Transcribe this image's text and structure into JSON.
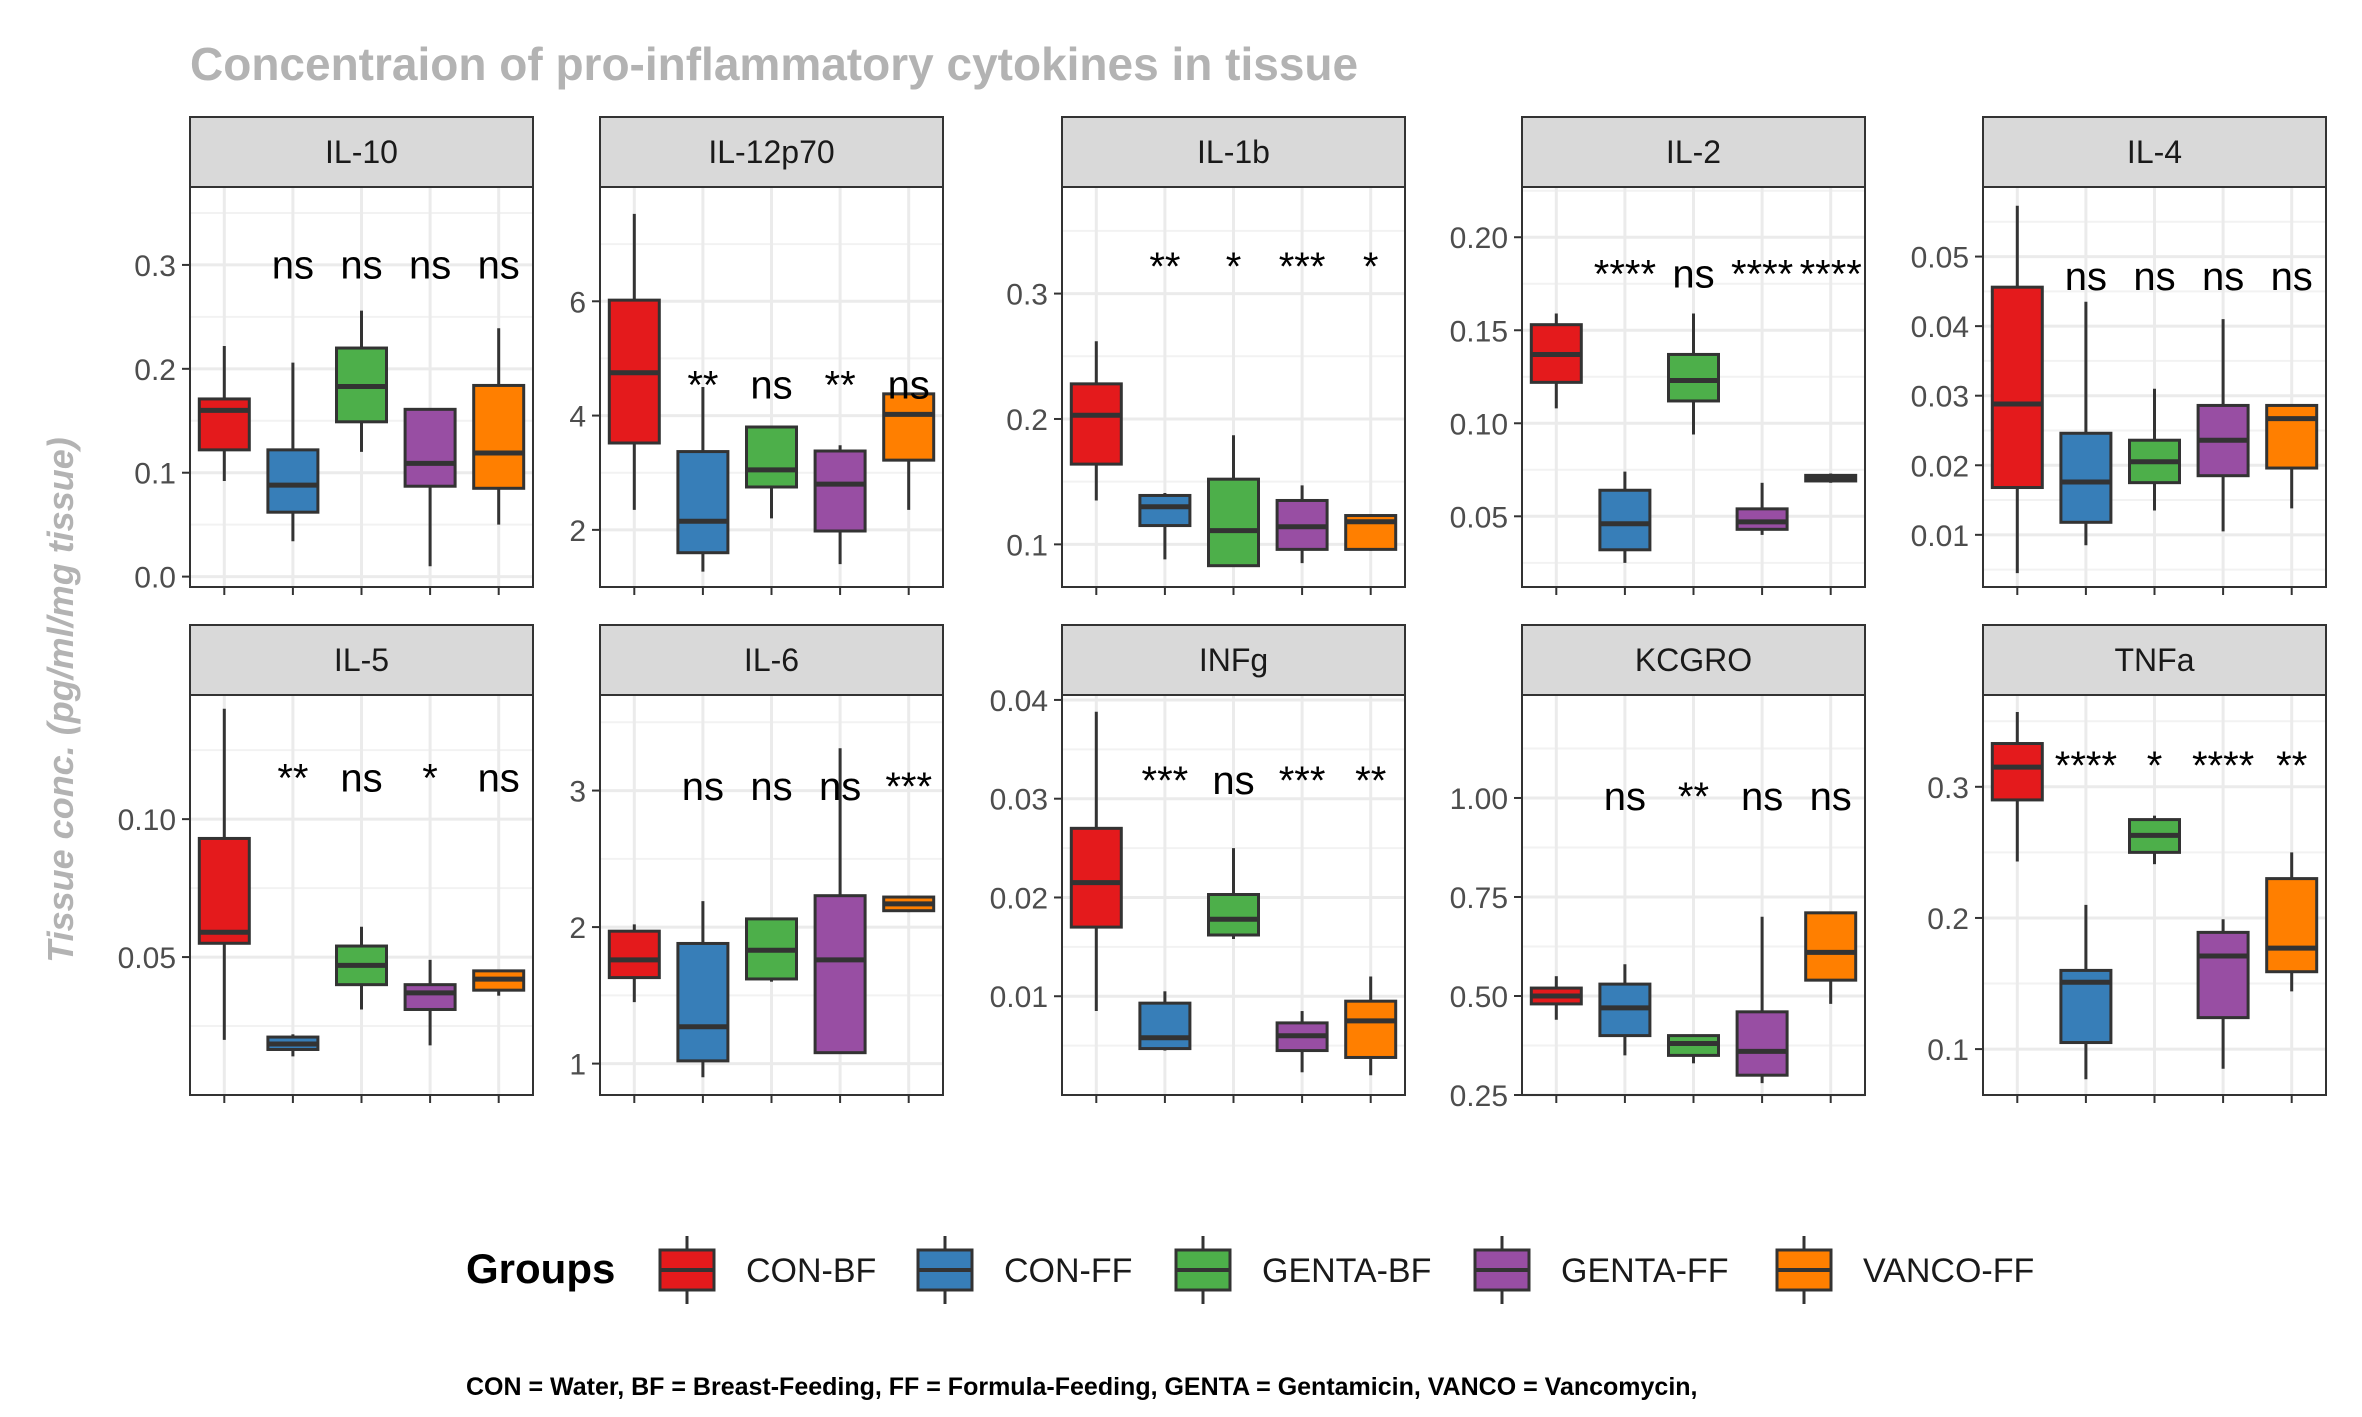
{
  "chart_data": {
    "type": "boxplot",
    "title": "Concentraion of pro-inflammatory cytokines in tissue",
    "ylabel": "Tissue conc. (pg/ml/mg tissue)",
    "groups": [
      "CON-BF",
      "CON-FF",
      "GENTA-BF",
      "GENTA-FF",
      "VANCO-FF"
    ],
    "colors": {
      "CON-BF": "#e41a1c",
      "CON-FF": "#377eb8",
      "GENTA-BF": "#4daf4a",
      "GENTA-FF": "#984ea3",
      "VANCO-FF": "#ff7f00"
    },
    "legend": {
      "title": "Groups",
      "position": "bottom"
    },
    "caption": "CON = Water, BF = Breast-Feeding, FF = Formula-Feeding, GENTA = Gentamicin, VANCO = Vancomycin,",
    "grid": true,
    "panels": [
      {
        "name": "IL-10",
        "ylim": [
          -0.01,
          0.375
        ],
        "ticks": [
          0.0,
          0.1,
          0.2,
          0.3
        ],
        "tick_labels": [
          "0.0",
          "0.1",
          "0.2",
          "0.3"
        ],
        "sig_y": 0.287,
        "significance": [
          "",
          "ns",
          "ns",
          "ns",
          "ns"
        ],
        "boxes": [
          [
            0.092,
            0.122,
            0.16,
            0.171,
            0.222
          ],
          [
            0.034,
            0.062,
            0.088,
            0.122,
            0.206
          ],
          [
            0.12,
            0.149,
            0.183,
            0.22,
            0.256
          ],
          [
            0.01,
            0.087,
            0.109,
            0.161,
            0.162
          ],
          [
            0.05,
            0.085,
            0.119,
            0.184,
            0.239
          ]
        ]
      },
      {
        "name": "IL-12p70",
        "ylim": [
          1.0,
          8.0
        ],
        "ticks": [
          2,
          4,
          6
        ],
        "tick_labels": [
          "2",
          "4",
          "6"
        ],
        "sig_y": 4.3,
        "significance": [
          "",
          "**",
          "ns",
          "**",
          "ns"
        ],
        "boxes": [
          [
            2.35,
            3.52,
            4.75,
            6.02,
            7.53
          ],
          [
            1.27,
            1.6,
            2.15,
            3.37,
            4.5
          ],
          [
            2.2,
            2.75,
            3.05,
            3.8,
            3.8
          ],
          [
            1.4,
            1.98,
            2.8,
            3.38,
            3.48
          ],
          [
            2.35,
            3.22,
            4.02,
            4.38,
            4.38
          ]
        ]
      },
      {
        "name": "IL-1b",
        "ylim": [
          0.066,
          0.385
        ],
        "ticks": [
          0.1,
          0.2,
          0.3
        ],
        "tick_labels": [
          "0.1",
          "0.2",
          "0.3"
        ],
        "sig_y": 0.311,
        "significance": [
          "",
          "**",
          "*",
          "***",
          "*"
        ],
        "boxes": [
          [
            0.135,
            0.164,
            0.203,
            0.228,
            0.262
          ],
          [
            0.088,
            0.115,
            0.13,
            0.139,
            0.141
          ],
          [
            0.082,
            0.083,
            0.111,
            0.152,
            0.187
          ],
          [
            0.085,
            0.096,
            0.114,
            0.135,
            0.147
          ],
          [
            0.095,
            0.096,
            0.118,
            0.123,
            0.124
          ]
        ]
      },
      {
        "name": "IL-2",
        "ylim": [
          0.012,
          0.227
        ],
        "ticks": [
          0.05,
          0.1,
          0.15,
          0.2
        ],
        "tick_labels": [
          "0.05",
          "0.10",
          "0.15",
          "0.20"
        ],
        "sig_y": 0.173,
        "significance": [
          "",
          "****",
          "ns",
          "****",
          "****"
        ],
        "boxes": [
          [
            0.108,
            0.122,
            0.137,
            0.153,
            0.159
          ],
          [
            0.025,
            0.032,
            0.046,
            0.064,
            0.074
          ],
          [
            0.094,
            0.112,
            0.123,
            0.137,
            0.159
          ],
          [
            0.04,
            0.043,
            0.047,
            0.054,
            0.068
          ],
          [
            0.068,
            0.069,
            0.071,
            0.072,
            0.073
          ]
        ]
      },
      {
        "name": "IL-4",
        "ylim": [
          0.0025,
          0.06
        ],
        "ticks": [
          0.01,
          0.02,
          0.03,
          0.04,
          0.05
        ],
        "tick_labels": [
          "0.01",
          "0.02",
          "0.03",
          "0.04",
          "0.05"
        ],
        "sig_y": 0.0452,
        "significance": [
          "",
          "ns",
          "ns",
          "ns",
          "ns"
        ],
        "boxes": [
          [
            0.0045,
            0.0168,
            0.0288,
            0.0456,
            0.0573
          ],
          [
            0.0085,
            0.0118,
            0.0176,
            0.0246,
            0.0435
          ],
          [
            0.0135,
            0.0175,
            0.0205,
            0.0236,
            0.031
          ],
          [
            0.0105,
            0.0185,
            0.0236,
            0.0286,
            0.041
          ],
          [
            0.0138,
            0.0196,
            0.0267,
            0.0286,
            0.0288
          ]
        ]
      },
      {
        "name": "IL-5",
        "ylim": [
          0.0,
          0.145
        ],
        "ticks": [
          0.05,
          0.1
        ],
        "tick_labels": [
          "0.05",
          "0.10"
        ],
        "sig_y": 0.11,
        "significance": [
          "",
          "**",
          "ns",
          "*",
          "ns"
        ],
        "boxes": [
          [
            0.02,
            0.055,
            0.059,
            0.093,
            0.14
          ],
          [
            0.014,
            0.0165,
            0.0185,
            0.021,
            0.022
          ],
          [
            0.031,
            0.04,
            0.047,
            0.054,
            0.061
          ],
          [
            0.018,
            0.031,
            0.037,
            0.04,
            0.049
          ],
          [
            0.036,
            0.038,
            0.042,
            0.045,
            0.045
          ]
        ]
      },
      {
        "name": "IL-6",
        "ylim": [
          0.77,
          3.7
        ],
        "ticks": [
          1,
          2,
          3
        ],
        "tick_labels": [
          "1",
          "2",
          "3"
        ],
        "sig_y": 2.93,
        "significance": [
          "",
          "ns",
          "ns",
          "ns",
          "***"
        ],
        "boxes": [
          [
            1.45,
            1.63,
            1.76,
            1.97,
            2.02
          ],
          [
            0.9,
            1.02,
            1.27,
            1.88,
            2.19
          ],
          [
            1.6,
            1.62,
            1.83,
            2.06,
            2.06
          ],
          [
            1.07,
            1.08,
            1.76,
            2.23,
            3.31
          ],
          [
            2.11,
            2.12,
            2.17,
            2.22,
            2.23
          ]
        ]
      },
      {
        "name": "INFg",
        "ylim": [
          0.0,
          0.0405
        ],
        "ticks": [
          0.01,
          0.02,
          0.03,
          0.04
        ],
        "tick_labels": [
          "0.01",
          "0.02",
          "0.03",
          "0.04"
        ],
        "sig_y": 0.0305,
        "significance": [
          "",
          "***",
          "ns",
          "***",
          "**"
        ],
        "boxes": [
          [
            0.0085,
            0.017,
            0.0215,
            0.027,
            0.0388
          ],
          [
            0.0045,
            0.0047,
            0.0058,
            0.0093,
            0.0105
          ],
          [
            0.0158,
            0.0162,
            0.0178,
            0.0203,
            0.025
          ],
          [
            0.0023,
            0.0045,
            0.006,
            0.0073,
            0.0085
          ],
          [
            0.002,
            0.0038,
            0.0075,
            0.0095,
            0.012
          ]
        ]
      },
      {
        "name": "KCGRO",
        "ylim": [
          0.25,
          1.26
        ],
        "ticks": [
          0.25,
          0.5,
          0.75,
          1.0
        ],
        "tick_labels": [
          "0.25",
          "0.50",
          "0.75",
          "1.00"
        ],
        "sig_y": 0.97,
        "significance": [
          "",
          "ns",
          "**",
          "ns",
          "ns"
        ],
        "boxes": [
          [
            0.44,
            0.48,
            0.5,
            0.52,
            0.55
          ],
          [
            0.35,
            0.4,
            0.47,
            0.53,
            0.58
          ],
          [
            0.33,
            0.35,
            0.38,
            0.4,
            0.4
          ],
          [
            0.28,
            0.3,
            0.36,
            0.46,
            0.7
          ],
          [
            0.48,
            0.54,
            0.61,
            0.71,
            0.71
          ]
        ]
      },
      {
        "name": "TNFa",
        "ylim": [
          0.065,
          0.37
        ],
        "ticks": [
          0.1,
          0.2,
          0.3
        ],
        "tick_labels": [
          "0.1",
          "0.2",
          "0.3"
        ],
        "sig_y": 0.306,
        "significance": [
          "",
          "****",
          "*",
          "****",
          "**"
        ],
        "boxes": [
          [
            0.243,
            0.29,
            0.315,
            0.333,
            0.357
          ],
          [
            0.077,
            0.105,
            0.151,
            0.16,
            0.21
          ],
          [
            0.241,
            0.25,
            0.263,
            0.275,
            0.278
          ],
          [
            0.085,
            0.124,
            0.171,
            0.189,
            0.199
          ],
          [
            0.144,
            0.159,
            0.177,
            0.23,
            0.25
          ]
        ]
      }
    ]
  }
}
